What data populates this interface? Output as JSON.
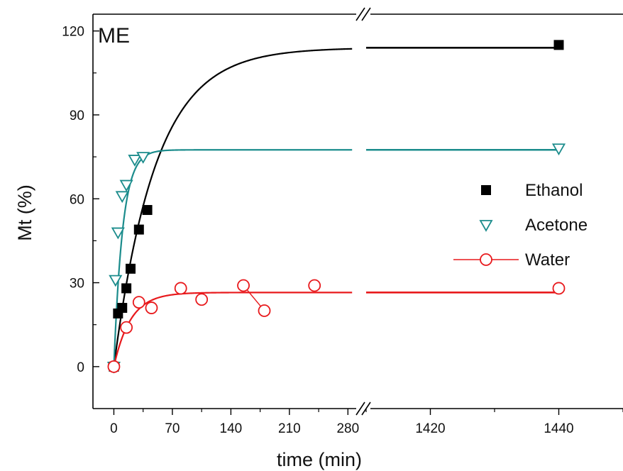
{
  "chart_data": {
    "type": "scatter",
    "panel_label": "ME",
    "xlabel": "time (min)",
    "ylabel": "Mt (%)",
    "ylim": [
      -15,
      126
    ],
    "y_ticks": [
      0,
      30,
      60,
      90,
      120
    ],
    "x_segments": [
      {
        "xlim": [
          -25,
          295
        ],
        "ticks": [
          0,
          70,
          140,
          210,
          280
        ]
      },
      {
        "xlim": [
          1410,
          1450
        ],
        "ticks": [
          1420,
          1440
        ]
      }
    ],
    "axis_break": true,
    "legend_position": "right",
    "series": [
      {
        "name": "Ethanol",
        "color": "#000000",
        "marker": "filled-square",
        "points": [
          [
            0,
            0
          ],
          [
            5,
            19
          ],
          [
            10,
            21
          ],
          [
            15,
            28
          ],
          [
            20,
            35
          ],
          [
            30,
            49
          ],
          [
            40,
            56
          ],
          [
            1440,
            115
          ]
        ],
        "fit": {
          "model": "exponential",
          "max": 114,
          "k": 0.02
        }
      },
      {
        "name": "Acetone",
        "color": "#1b8c8c",
        "marker": "open-triangle-down",
        "points": [
          [
            0,
            0
          ],
          [
            2,
            31
          ],
          [
            5,
            48
          ],
          [
            10,
            61
          ],
          [
            15,
            65
          ],
          [
            25,
            74
          ],
          [
            35,
            75
          ],
          [
            1440,
            78
          ]
        ],
        "fit": {
          "model": "exponential",
          "max": 77.5,
          "k": 0.095
        }
      },
      {
        "name": "Water",
        "color": "#e8191c",
        "marker": "open-circle",
        "points": [
          [
            0,
            0
          ],
          [
            15,
            14
          ],
          [
            30,
            23
          ],
          [
            45,
            21
          ],
          [
            80,
            28
          ],
          [
            105,
            24
          ],
          [
            155,
            29
          ],
          [
            180,
            20
          ],
          [
            240,
            29
          ],
          [
            1440,
            28
          ]
        ],
        "fit": {
          "model": "exponential",
          "max": 26.5,
          "k": 0.05
        }
      }
    ]
  }
}
